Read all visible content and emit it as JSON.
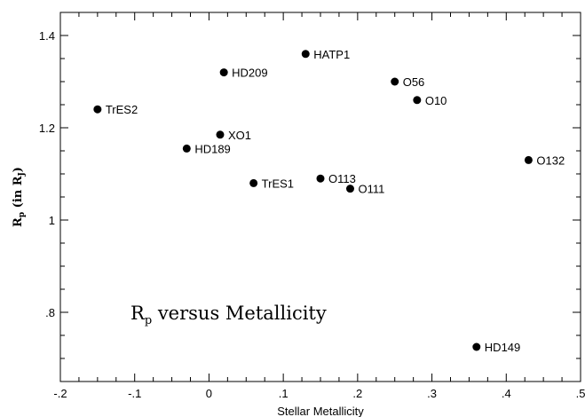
{
  "chart_data": {
    "type": "scatter",
    "title": "",
    "xlabel": "Stellar Metallicity",
    "ylabel": {
      "main": "R",
      "sub": "p",
      "rest": " (in R",
      "sub2": "J",
      "close": ")"
    },
    "xlim": [
      -0.2,
      0.5
    ],
    "ylim": [
      0.65,
      1.45
    ],
    "grid": false,
    "x_ticks": [
      -0.2,
      -0.1,
      0,
      0.1,
      0.2,
      0.3,
      0.4,
      0.5
    ],
    "x_tick_labels": [
      "-.2",
      "-.1",
      "0",
      ".1",
      ".2",
      ".3",
      ".4",
      ".5"
    ],
    "y_ticks": [
      0.8,
      1.0,
      1.2,
      1.4
    ],
    "y_tick_labels": [
      ".8",
      "1",
      "1.2",
      "1.4"
    ],
    "annotation": {
      "main": "R",
      "sub": "p",
      "rest": " versus Metallicity"
    },
    "points": [
      {
        "label": "HATP1",
        "x": 0.13,
        "y": 1.36
      },
      {
        "label": "HD209",
        "x": 0.02,
        "y": 1.32
      },
      {
        "label": "O56",
        "x": 0.25,
        "y": 1.3
      },
      {
        "label": "O10",
        "x": 0.28,
        "y": 1.26
      },
      {
        "label": "TrES2",
        "x": -0.15,
        "y": 1.24
      },
      {
        "label": "XO1",
        "x": 0.015,
        "y": 1.185
      },
      {
        "label": "HD189",
        "x": -0.03,
        "y": 1.155
      },
      {
        "label": "O132",
        "x": 0.43,
        "y": 1.13
      },
      {
        "label": "O113",
        "x": 0.15,
        "y": 1.09
      },
      {
        "label": "TrES1",
        "x": 0.06,
        "y": 1.08
      },
      {
        "label": "O111",
        "x": 0.19,
        "y": 1.068
      },
      {
        "label": "HD149",
        "x": 0.36,
        "y": 0.725
      }
    ]
  }
}
